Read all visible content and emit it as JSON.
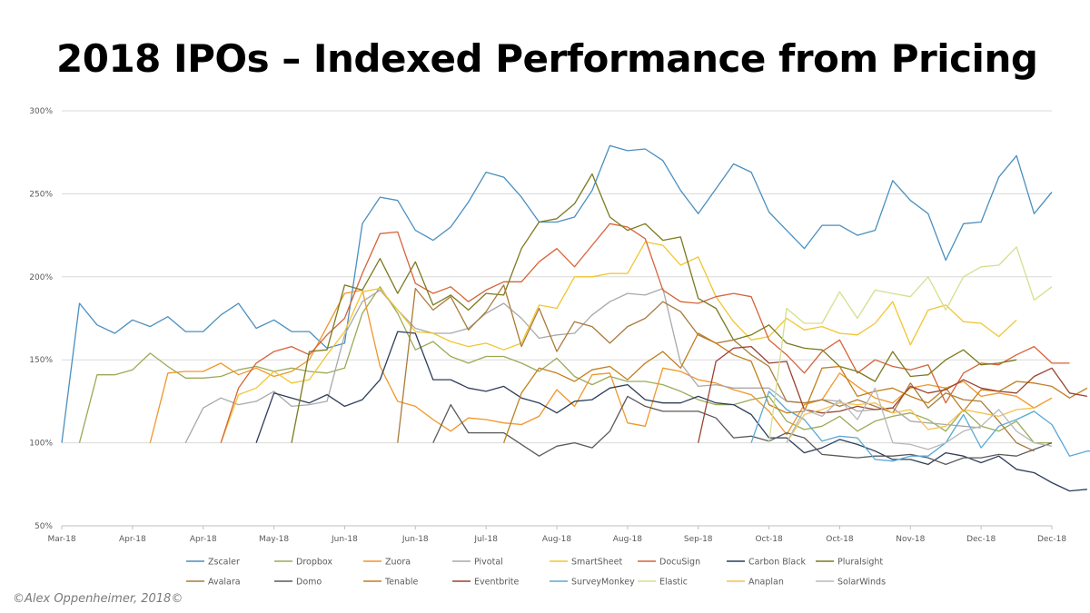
{
  "credit": "©Alex Oppenheimer, 2018©",
  "chart_data": {
    "type": "line",
    "title": "2018 IPOs – Indexed Performance from Pricing",
    "y_tick_labels": [
      "300%",
      "250%",
      "200%",
      "150%",
      "100%",
      "50%"
    ],
    "y_tick_values": [
      300,
      250,
      200,
      150,
      100,
      50
    ],
    "ylim": [
      50,
      300
    ],
    "x_tick_labels": [
      "Mar-18",
      "Apr-18",
      "Apr-18",
      "May-18",
      "Jun-18",
      "Jun-18",
      "Jul-18",
      "Aug-18",
      "Aug-18",
      "Sep-18",
      "Oct-18",
      "Oct-18",
      "Nov-18",
      "Dec-18",
      "Dec-18"
    ],
    "x_tick_weeks": [
      0,
      4,
      8,
      12,
      16,
      20,
      24,
      28,
      32,
      36,
      40,
      44,
      48,
      52,
      56
    ],
    "xlim_weeks": [
      0,
      56
    ],
    "grid": "horizontal",
    "legend_position": "bottom",
    "series": [
      {
        "name": "Zscaler",
        "color": "#4a8fbf",
        "start": 0,
        "values": [
          100,
          184,
          171,
          166,
          174,
          170,
          176,
          167,
          167,
          177,
          184,
          169,
          174,
          167,
          167,
          157,
          160,
          232,
          248,
          246,
          228,
          222,
          230,
          245,
          263,
          260,
          248,
          233,
          233,
          236,
          252,
          279,
          276,
          277,
          270,
          252,
          238,
          253,
          268,
          263,
          239,
          228,
          217,
          231,
          231,
          225,
          228,
          258,
          246,
          238,
          210,
          232,
          233,
          260,
          273,
          238,
          251
        ]
      },
      {
        "name": "Dropbox",
        "color": "#9aab57",
        "start": 1,
        "values": [
          100,
          141,
          141,
          144,
          154,
          146,
          139,
          139,
          140,
          144,
          146,
          143,
          145,
          143,
          142,
          145,
          178,
          194,
          178,
          156,
          161,
          152,
          148,
          152,
          152,
          148,
          143,
          151,
          140,
          135,
          140,
          137,
          137,
          135,
          131,
          126,
          123,
          123,
          126,
          128,
          113,
          108,
          110,
          116,
          107,
          113,
          116,
          118,
          114,
          107,
          120,
          110,
          107,
          113,
          100,
          100
        ]
      },
      {
        "name": "Zuora",
        "color": "#f0962a",
        "start": 5,
        "values": [
          100,
          142,
          143,
          143,
          148,
          141,
          145,
          140,
          143,
          150,
          170,
          190,
          192,
          146,
          125,
          122,
          114,
          107,
          115,
          114,
          112,
          111,
          116,
          132,
          122,
          141,
          142,
          112,
          110,
          145,
          143,
          138,
          136,
          132,
          129,
          119,
          105,
          123,
          126,
          142,
          134,
          127,
          124,
          133,
          135,
          133,
          137,
          128,
          130,
          128,
          121,
          127
        ]
      },
      {
        "name": "Pivotal",
        "color": "#a9a9a9",
        "start": 7,
        "values": [
          100,
          121,
          127,
          123,
          125,
          131,
          122,
          123,
          125,
          165,
          185,
          192,
          180,
          169,
          166,
          166,
          169,
          178,
          184,
          175,
          163,
          165,
          166,
          177,
          185,
          190,
          189,
          193,
          148,
          134,
          135,
          133,
          133,
          133,
          125,
          124,
          126,
          125,
          119,
          120,
          121,
          113,
          112,
          111,
          110,
          109
        ]
      },
      {
        "name": "SmartSheet",
        "color": "#f2c531",
        "start": 9,
        "values": [
          100,
          129,
          133,
          143,
          136,
          138,
          153,
          167,
          191,
          193,
          180,
          167,
          166,
          161,
          158,
          160,
          156,
          160,
          183,
          181,
          200,
          200,
          202,
          202,
          221,
          219,
          207,
          212,
          188,
          173,
          162,
          164,
          175,
          168,
          170,
          166,
          165,
          172,
          185,
          159,
          180,
          183,
          173,
          172,
          164,
          174
        ]
      },
      {
        "name": "DocuSign",
        "color": "#d5643a",
        "start": 9,
        "values": [
          100,
          133,
          148,
          155,
          158,
          153,
          165,
          175,
          202,
          226,
          227,
          196,
          190,
          194,
          185,
          192,
          197,
          197,
          209,
          217,
          206,
          219,
          232,
          230,
          223,
          192,
          185,
          184,
          188,
          190,
          188,
          162,
          153,
          142,
          155,
          162,
          142,
          150,
          146,
          144,
          147,
          124,
          142,
          148,
          147,
          153,
          158,
          148,
          148
        ]
      },
      {
        "name": "Carbon Black",
        "color": "#2c3e5a",
        "start": 11,
        "values": [
          100,
          130,
          127,
          124,
          129,
          122,
          126,
          138,
          167,
          166,
          138,
          138,
          133,
          131,
          134,
          127,
          124,
          118,
          125,
          126,
          133,
          135,
          126,
          124,
          124,
          128,
          124,
          123,
          117,
          103,
          103,
          94,
          97,
          102,
          99,
          95,
          90,
          90,
          87,
          94,
          92,
          88,
          92,
          84,
          82,
          76,
          71,
          72
        ]
      },
      {
        "name": "Pluralsight",
        "color": "#7b7a1f",
        "start": 13,
        "values": [
          100,
          155,
          156,
          195,
          192,
          211,
          190,
          209,
          183,
          189,
          180,
          190,
          189,
          217,
          233,
          235,
          244,
          262,
          236,
          228,
          232,
          222,
          224,
          187,
          181,
          162,
          165,
          171,
          160,
          157,
          156,
          146,
          143,
          137,
          155,
          140,
          141,
          150,
          156,
          147,
          148,
          150
        ]
      },
      {
        "name": "Avalara",
        "color": "#a97b3a",
        "start": 19,
        "values": [
          100,
          193,
          180,
          188,
          168,
          179,
          195,
          158,
          181,
          155,
          173,
          170,
          160,
          170,
          175,
          185,
          179,
          165,
          160,
          162,
          153,
          146,
          125,
          124,
          126,
          122,
          126,
          122,
          118,
          136,
          121,
          130,
          126,
          125,
          113,
          100,
          95
        ]
      },
      {
        "name": "Domo",
        "color": "#5a5a5a",
        "start": 21,
        "values": [
          100,
          123,
          106,
          106,
          106,
          99,
          92,
          98,
          100,
          97,
          107,
          128,
          122,
          119,
          119,
          119,
          115,
          103,
          104,
          101,
          106,
          103,
          93,
          92,
          91,
          92,
          92,
          93,
          91,
          87,
          91,
          91,
          93,
          92,
          96,
          100
        ]
      },
      {
        "name": "Tenable",
        "color": "#c17f1e",
        "start": 25,
        "values": [
          100,
          130,
          145,
          142,
          137,
          144,
          146,
          138,
          148,
          155,
          145,
          166,
          160,
          153,
          149,
          123,
          118,
          119,
          145,
          146,
          128,
          131,
          133,
          128,
          124,
          133,
          119,
          132,
          131,
          137,
          136,
          134,
          127,
          133
        ]
      },
      {
        "name": "Eventbrite",
        "color": "#9a4232",
        "start": 36,
        "values": [
          100,
          149,
          157,
          158,
          148,
          149,
          120,
          118,
          119,
          122,
          120,
          121,
          134,
          130,
          132,
          138,
          133,
          131,
          130,
          140,
          145,
          130,
          128
        ]
      },
      {
        "name": "SurveyMonkey",
        "color": "#5aa8d6",
        "start": 39,
        "values": [
          100,
          131,
          120,
          114,
          101,
          104,
          103,
          90,
          89,
          92,
          92,
          100,
          117,
          97,
          110,
          114,
          119,
          111,
          92,
          95,
          95
        ]
      },
      {
        "name": "Elastic",
        "color": "#d5df8e",
        "start": 40,
        "values": [
          100,
          181,
          172,
          172,
          191,
          175,
          192,
          190,
          188,
          200,
          180,
          200,
          206,
          207,
          218,
          186,
          194
        ]
      },
      {
        "name": "Anaplan",
        "color": "#f6c24d",
        "start": 41,
        "values": [
          100,
          117,
          120,
          124,
          123,
          124,
          118,
          120,
          108,
          110,
          120,
          118,
          116,
          120,
          121
        ]
      },
      {
        "name": "SolarWinds",
        "color": "#b8b8b8",
        "start": 41,
        "values": [
          100,
          120,
          116,
          126,
          114,
          133,
          100,
          99,
          96,
          100,
          107,
          110,
          120,
          107,
          100,
          98
        ]
      }
    ]
  }
}
